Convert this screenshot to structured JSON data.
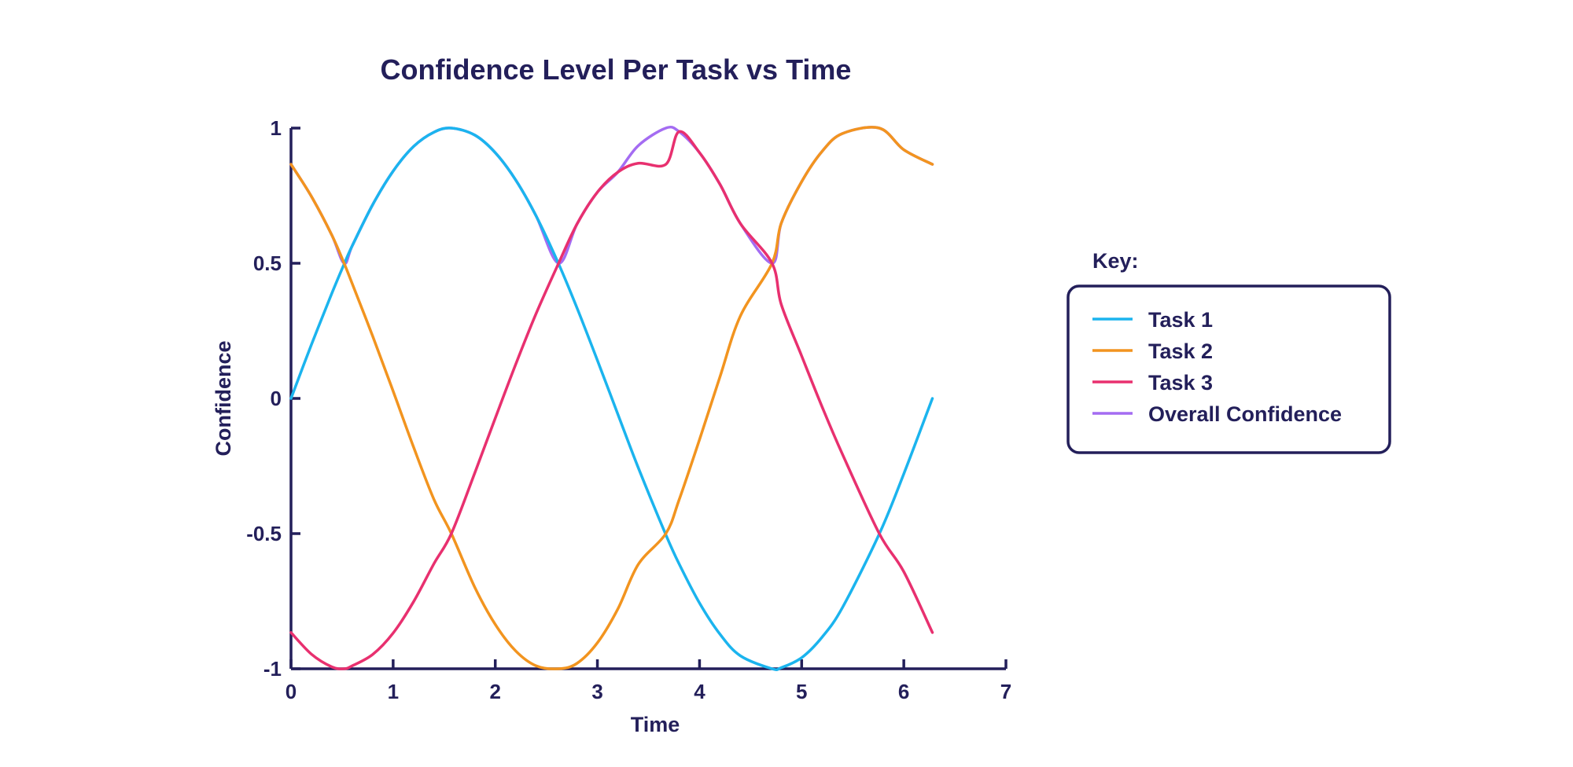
{
  "chart_data": {
    "type": "line",
    "title": "Confidence Level Per Task vs Time",
    "xlabel": "Time",
    "ylabel": "Confidence",
    "xlim": [
      0,
      7
    ],
    "ylim": [
      -1,
      1
    ],
    "x_ticks": [
      "0",
      "1",
      "2",
      "3",
      "4",
      "5",
      "6",
      "7"
    ],
    "y_ticks": [
      "1",
      "0.5",
      "0",
      "-0.5",
      "-1"
    ],
    "grid": false,
    "legend": {
      "title": "Key:",
      "position": "right"
    },
    "x": [
      0,
      0.2,
      0.4,
      0.52,
      0.6,
      0.8,
      1.0,
      1.2,
      1.4,
      1.57,
      1.8,
      2.0,
      2.2,
      2.4,
      2.62,
      2.8,
      3.0,
      3.2,
      3.4,
      3.67,
      3.8,
      4.0,
      4.2,
      4.4,
      4.71,
      4.8,
      5.0,
      5.2,
      5.4,
      5.76,
      6.0,
      6.28
    ],
    "series": [
      {
        "name": "Task 1",
        "color": "#1bb4ee",
        "values": [
          0,
          0.199,
          0.389,
          0.497,
          0.565,
          0.717,
          0.841,
          0.932,
          0.985,
          1.0,
          0.974,
          0.909,
          0.808,
          0.675,
          0.498,
          0.335,
          0.141,
          -0.058,
          -0.256,
          -0.504,
          -0.612,
          -0.757,
          -0.872,
          -0.952,
          -1.0,
          -0.996,
          -0.959,
          -0.883,
          -0.773,
          -0.501,
          -0.279,
          0
        ]
      },
      {
        "name": "Task 2",
        "color": "#f2941f",
        "values": [
          0.866,
          0.747,
          0.604,
          0.5,
          0.424,
          0.23,
          0.027,
          -0.18,
          -0.374,
          -0.5,
          -0.699,
          -0.836,
          -0.934,
          -0.989,
          -1.0,
          -0.98,
          -0.904,
          -0.779,
          -0.614,
          -0.5,
          -0.375,
          -0.152,
          0.08,
          0.305,
          0.5,
          0.648,
          0.802,
          0.914,
          0.98,
          1.0,
          0.92,
          0.866
        ]
      },
      {
        "name": "Task 3",
        "color": "#e8306f",
        "values": [
          -0.866,
          -0.946,
          -0.993,
          -1.0,
          -0.989,
          -0.947,
          -0.868,
          -0.752,
          -0.611,
          -0.5,
          -0.275,
          -0.073,
          0.126,
          0.314,
          0.5,
          0.645,
          0.763,
          0.837,
          0.87,
          0.866,
          0.987,
          0.909,
          0.792,
          0.647,
          0.5,
          0.348,
          0.157,
          -0.031,
          -0.207,
          -0.5,
          -0.641,
          -0.866
        ]
      },
      {
        "name": "Overall Confidence",
        "color": "#a46cf2",
        "values": [
          0.866,
          0.747,
          0.604,
          0.5,
          0.565,
          0.717,
          0.841,
          0.932,
          0.985,
          1.0,
          0.974,
          0.909,
          0.808,
          0.675,
          0.5,
          0.645,
          0.763,
          0.837,
          0.935,
          1.0,
          0.987,
          0.909,
          0.792,
          0.647,
          0.5,
          0.648,
          0.802,
          0.914,
          0.98,
          1.0,
          0.92,
          0.866
        ]
      }
    ]
  }
}
